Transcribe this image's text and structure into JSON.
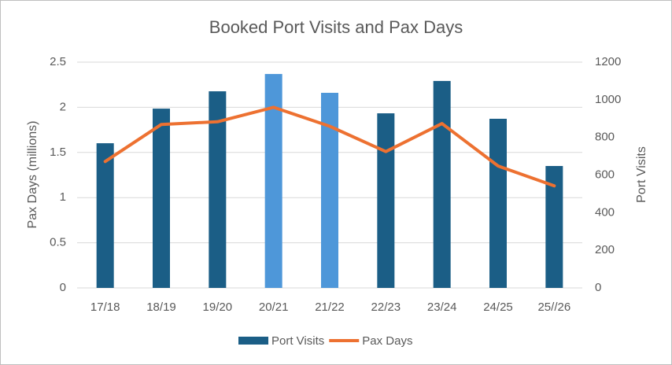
{
  "chart_data": {
    "type": "bar_line",
    "title": "Booked Port Visits and Pax Days",
    "ylabel": "Pax Days (millions)",
    "y2label": "Port Visits",
    "categories": [
      "17/18",
      "18/19",
      "19/20",
      "20/21",
      "21/22",
      "22/23",
      "23/24",
      "24/25",
      "25//26"
    ],
    "series": [
      {
        "name": "Port Visits",
        "kind": "bar",
        "axis": "y2",
        "color": "#1b5e86",
        "point_colors": [
          "#1b5e86",
          "#1b5e86",
          "#1b5e86",
          "#4e97d9",
          "#4e97d9",
          "#1b5e86",
          "#1b5e86",
          "#1b5e86",
          "#1b5e86"
        ],
        "values": [
          769,
          953,
          1045,
          1137,
          1037,
          928,
          1100,
          899,
          648
        ]
      },
      {
        "name": "Pax Days",
        "kind": "line",
        "axis": "y",
        "color": "#ed7131",
        "values": [
          1.4,
          1.81,
          1.84,
          2.0,
          1.79,
          1.51,
          1.82,
          1.35,
          1.13
        ]
      }
    ],
    "ylim": [
      0,
      2.5
    ],
    "yticks": [
      0,
      0.5,
      1,
      1.5,
      2,
      2.5
    ],
    "y2lim": [
      0,
      1200
    ],
    "y2ticks": [
      0,
      200,
      400,
      600,
      800,
      1000,
      1200
    ],
    "grid": true,
    "legend": "bottom"
  }
}
